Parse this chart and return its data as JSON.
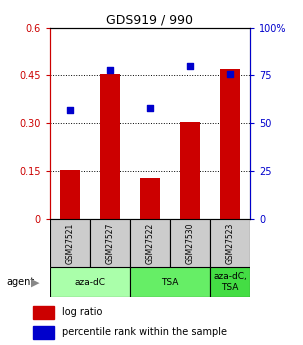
{
  "title": "GDS919 / 990",
  "samples": [
    "GSM27521",
    "GSM27527",
    "GSM27522",
    "GSM27530",
    "GSM27523"
  ],
  "log_ratio": [
    0.155,
    0.455,
    0.13,
    0.305,
    0.47
  ],
  "percentile_rank": [
    57,
    78,
    58,
    80,
    76
  ],
  "bar_color": "#cc0000",
  "dot_color": "#0000cc",
  "ylim_left": [
    0,
    0.6
  ],
  "ylim_right": [
    0,
    100
  ],
  "yticks_left": [
    0,
    0.15,
    0.3,
    0.45,
    0.6
  ],
  "ytick_labels_left": [
    "0",
    "0.15",
    "0.30",
    "0.45",
    "0.6"
  ],
  "yticks_right": [
    0,
    25,
    50,
    75,
    100
  ],
  "ytick_labels_right": [
    "0",
    "25",
    "50",
    "75",
    "100%"
  ],
  "groups": [
    {
      "label": "aza-dC",
      "indices": [
        0,
        1
      ],
      "color": "#aaffaa"
    },
    {
      "label": "TSA",
      "indices": [
        2,
        3
      ],
      "color": "#66ee66"
    },
    {
      "label": "aza-dC,\nTSA",
      "indices": [
        4
      ],
      "color": "#44dd44"
    }
  ],
  "agent_label": "agent",
  "legend_items": [
    {
      "color": "#cc0000",
      "label": "log ratio"
    },
    {
      "color": "#0000cc",
      "label": "percentile rank within the sample"
    }
  ],
  "bar_width": 0.5,
  "plot_bg": "#ffffff"
}
